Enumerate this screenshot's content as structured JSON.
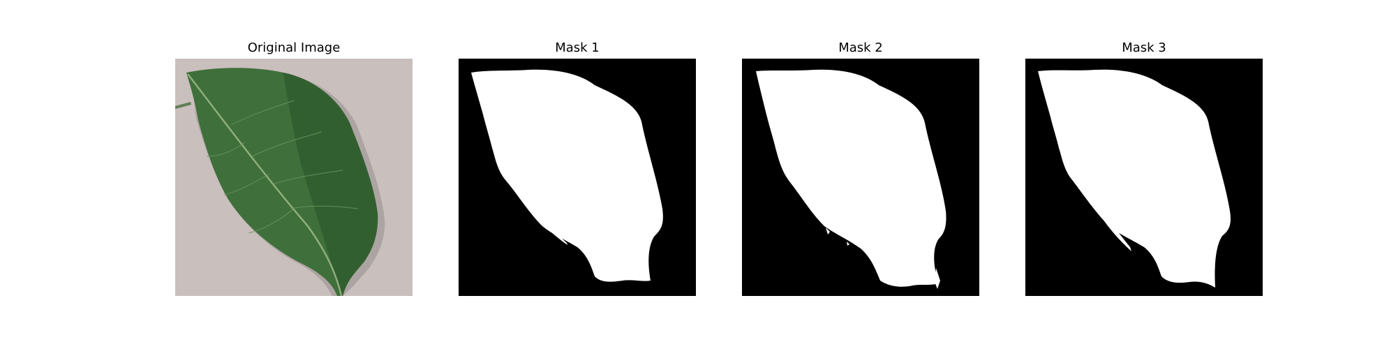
{
  "panels": [
    {
      "title": "Original Image",
      "kind": "photo"
    },
    {
      "title": "Mask 1",
      "kind": "mask"
    },
    {
      "title": "Mask 2",
      "kind": "mask"
    },
    {
      "title": "Mask 3",
      "kind": "mask"
    }
  ],
  "colors": {
    "background": "#c9bfbd",
    "leaf": "#3f6f3b",
    "leaf_dark": "#2c5229",
    "mask_bg": "#000000",
    "mask_fg": "#ffffff"
  }
}
